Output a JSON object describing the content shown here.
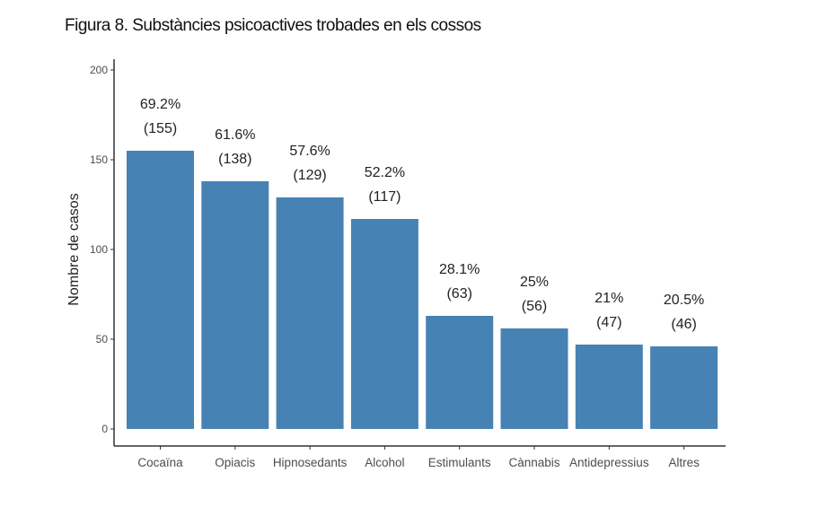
{
  "chart_data": {
    "type": "bar",
    "title": "Figura 8. Substàncies psicoactives trobades en els cossos",
    "xlabel": "",
    "ylabel": "Nombre de casos",
    "ylim": [
      0,
      200
    ],
    "yticks": [
      0,
      50,
      100,
      150,
      200
    ],
    "grid": false,
    "categories": [
      "Cocaïna",
      "Opiacis",
      "Hipnosedants",
      "Alcohol",
      "Estimulants",
      "Cànnabis",
      "Antidepressius",
      "Altres"
    ],
    "values": [
      155,
      138,
      129,
      117,
      63,
      56,
      47,
      46
    ],
    "percent_labels": [
      "69.2%",
      "61.6%",
      "57.6%",
      "52.2%",
      "28.1%",
      "25%",
      "21%",
      "20.5%"
    ],
    "count_labels": [
      "(155)",
      "(138)",
      "(129)",
      "(117)",
      "(63)",
      "(56)",
      "(47)",
      "(46)"
    ],
    "bar_color": "#4682B4"
  }
}
